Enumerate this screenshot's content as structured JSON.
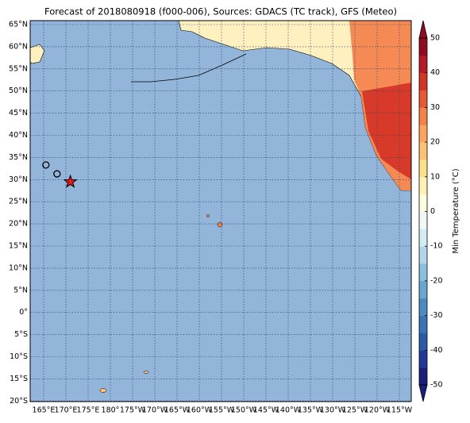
{
  "title": "Forecast of 2018080918 (f000-006), Sources: GDACS (TC track), GFS (Meteo)",
  "map": {
    "lat_ticks": [
      {
        "value": 65,
        "label": "65°N"
      },
      {
        "value": 60,
        "label": "60°N"
      },
      {
        "value": 55,
        "label": "55°N"
      },
      {
        "value": 50,
        "label": "50°N"
      },
      {
        "value": 45,
        "label": "45°N"
      },
      {
        "value": 40,
        "label": "40°N"
      },
      {
        "value": 35,
        "label": "35°N"
      },
      {
        "value": 30,
        "label": "30°N"
      },
      {
        "value": 25,
        "label": "25°N"
      },
      {
        "value": 20,
        "label": "20°N"
      },
      {
        "value": 15,
        "label": "15°N"
      },
      {
        "value": 10,
        "label": "10°N"
      },
      {
        "value": 5,
        "label": "5°N"
      },
      {
        "value": 0,
        "label": "0°"
      },
      {
        "value": -5,
        "label": "5°S"
      },
      {
        "value": -10,
        "label": "10°S"
      },
      {
        "value": -15,
        "label": "15°S"
      },
      {
        "value": -20,
        "label": "20°S"
      }
    ],
    "lon_ticks": [
      {
        "value": 165,
        "label": "165°E"
      },
      {
        "value": 170,
        "label": "170°E"
      },
      {
        "value": 175,
        "label": "175°E"
      },
      {
        "value": 180,
        "label": "180°"
      },
      {
        "value": 185,
        "label": "175°W"
      },
      {
        "value": 190,
        "label": "170°W"
      },
      {
        "value": 195,
        "label": "165°W"
      },
      {
        "value": 200,
        "label": "160°W"
      },
      {
        "value": 205,
        "label": "155°W"
      },
      {
        "value": 210,
        "label": "150°W"
      },
      {
        "value": 215,
        "label": "145°W"
      },
      {
        "value": 220,
        "label": "140°W"
      },
      {
        "value": 225,
        "label": "135°W"
      },
      {
        "value": 230,
        "label": "130°W"
      },
      {
        "value": 235,
        "label": "125°W"
      },
      {
        "value": 240,
        "label": "120°W"
      },
      {
        "value": 245,
        "label": "115°W"
      }
    ],
    "track": [
      {
        "lon": 165.5,
        "lat": 33.3
      },
      {
        "lon": 168,
        "lat": 31.3
      }
    ],
    "current_position": {
      "lon": 171,
      "lat": 29.5
    }
  },
  "colorbar": {
    "label": "Min Temperature (°C)",
    "range": [
      -50,
      50
    ],
    "ticks": [
      50,
      40,
      30,
      20,
      10,
      0,
      -10,
      -20,
      -30,
      -40,
      -50
    ],
    "colors": [
      "#1a1f7a",
      "#23399a",
      "#2c5aa8",
      "#3a72b5",
      "#4a8cc1",
      "#6aa6cf",
      "#8cbfdd",
      "#b2d6e8",
      "#d5ebf2",
      "#eff8f4",
      "#fffde0",
      "#fff0b5",
      "#fee08b",
      "#fdc271",
      "#fca35d",
      "#f4804a",
      "#e45a35",
      "#d03526",
      "#b51a26",
      "#910c23"
    ]
  }
}
